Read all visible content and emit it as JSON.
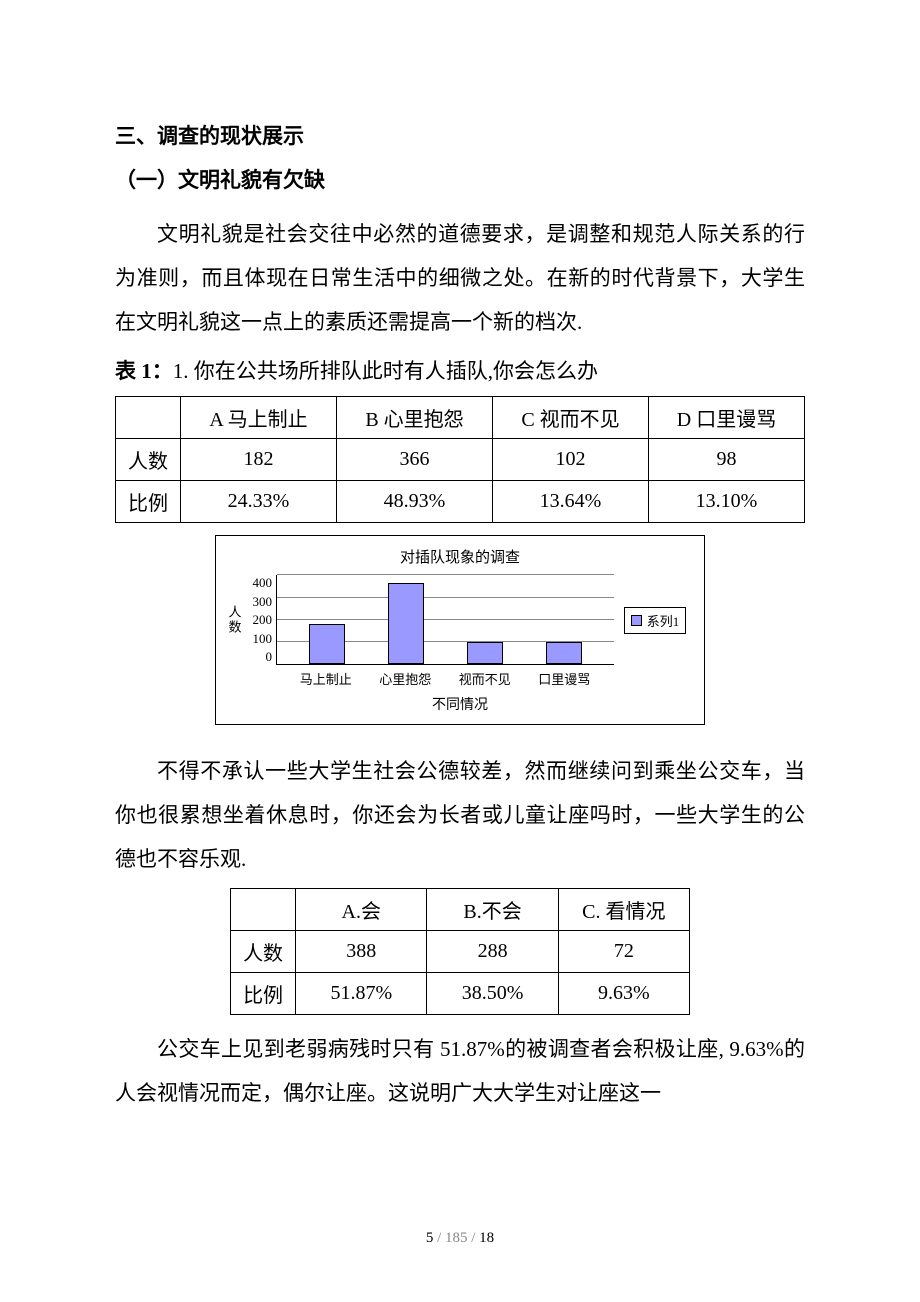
{
  "headings": {
    "h3": "三、调查的现状展示",
    "sub1": "（一）文明礼貌有欠缺"
  },
  "para1": "文明礼貌是社会交往中必然的道德要求，是调整和规范人际关系的行为准则，而且体现在日常生活中的细微之处。在新的时代背景下，大学生在文明礼貌这一点上的素质还需提高一个新的档次.",
  "table1_caption_bold": "表 1：",
  "table1_caption_rest": "1. 你在公共场所排队此时有人插队,你会怎么办",
  "table1": {
    "headers": [
      "",
      "A 马上制止",
      "B 心里抱怨",
      "C 视而不见",
      "D 口里谩骂"
    ],
    "rows": [
      [
        "人数",
        "182",
        "366",
        "102",
        "98"
      ],
      [
        "比例",
        "24.33%",
        "48.93%",
        "13.64%",
        "13.10%"
      ]
    ]
  },
  "chart": {
    "title": "对插队现象的调查",
    "ylabel": "人数",
    "xlabel": "不同情况",
    "categories": [
      "马上制止",
      "心里抱怨",
      "视而不见",
      "口里谩骂"
    ],
    "values": [
      182,
      366,
      102,
      98
    ],
    "ymax": 400,
    "ytick_step": 100,
    "bar_color": "#9999ff",
    "border_color": "#000000",
    "grid_color": "#888888",
    "legend_label": "系列1",
    "font_size_title": 15,
    "font_size_ticks": 13
  },
  "para2": "不得不承认一些大学生社会公德较差，然而继续问到乘坐公交车，当你也很累想坐着休息时，你还会为长者或儿童让座吗时，一些大学生的公德也不容乐观.",
  "table2": {
    "headers": [
      "",
      "A.会",
      "B.不会",
      "C. 看情况"
    ],
    "rows": [
      [
        "人数",
        "388",
        "288",
        "72"
      ],
      [
        "比例",
        "51.87%",
        "38.50%",
        "9.63%"
      ]
    ]
  },
  "para3": "公交车上见到老弱病残时只有 51.87%的被调查者会积极让座, 9.63%的人会视情况而定，偶尔让座。这说明广大大学生对让座这一",
  "footer": {
    "current": "5",
    "sep": " / ",
    "mid": "185",
    "last": "18"
  }
}
